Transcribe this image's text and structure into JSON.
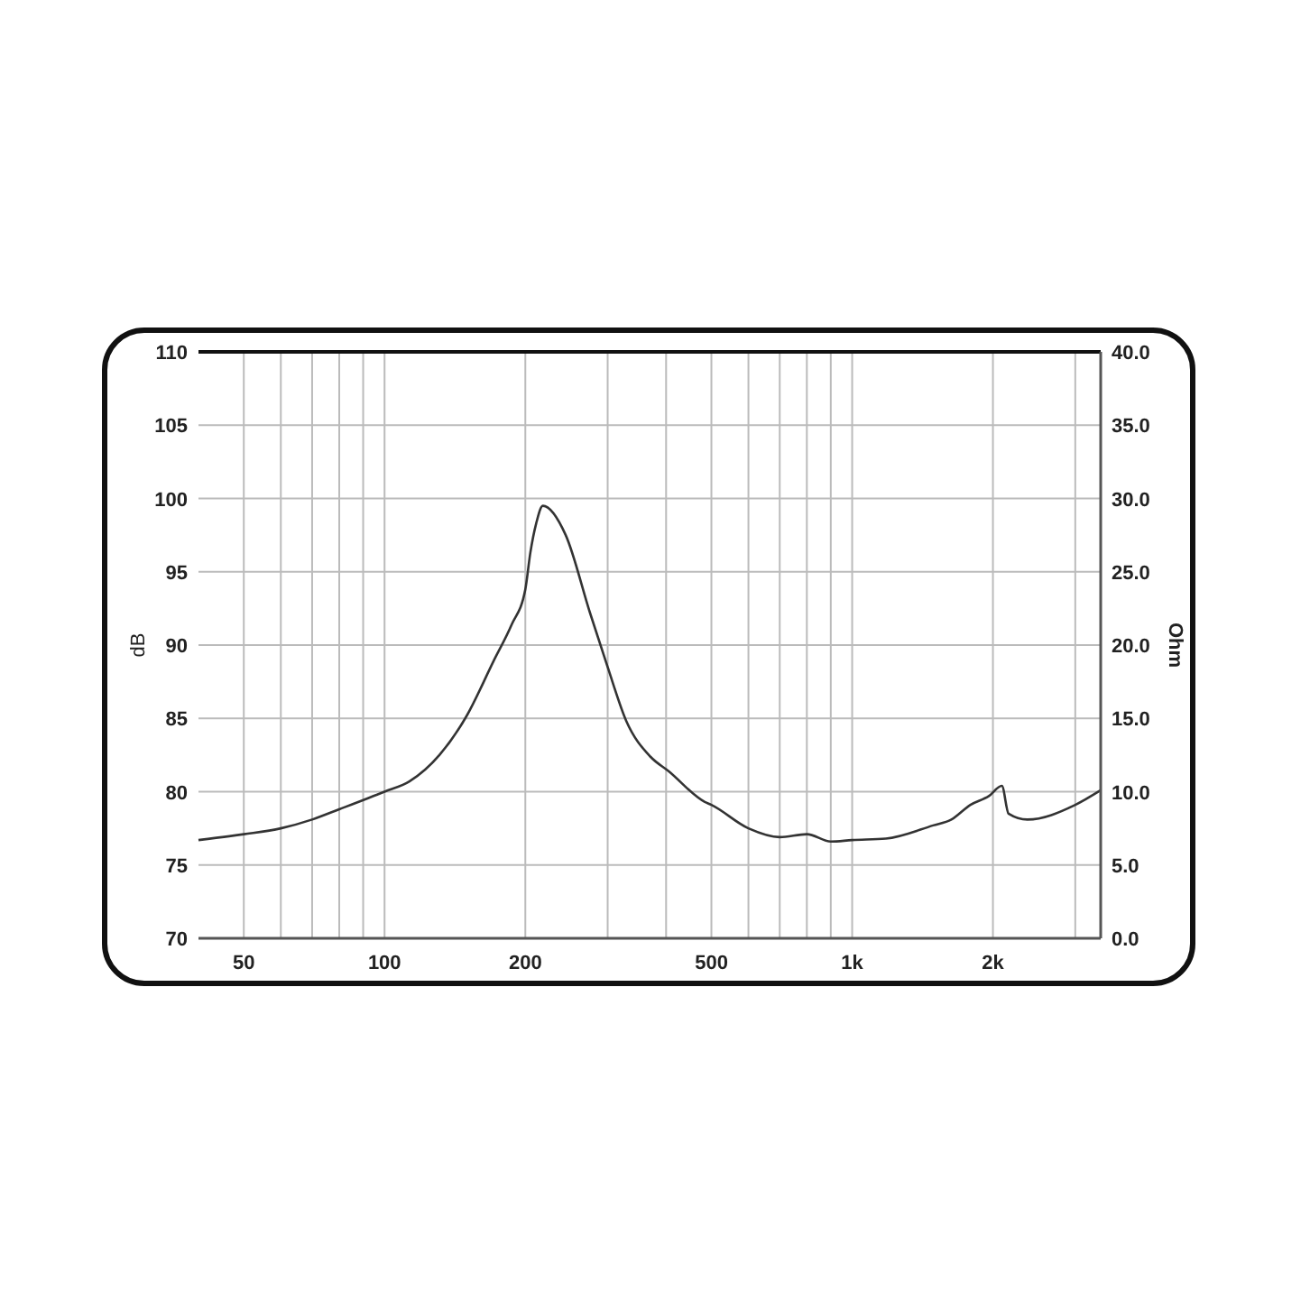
{
  "chart_data": {
    "type": "line",
    "ylabel": "dB",
    "y2label": "Ohm",
    "x": [
      40,
      50,
      60,
      70,
      80,
      100,
      113,
      131,
      150,
      171,
      187,
      200,
      205,
      211,
      218,
      244,
      275,
      300,
      329,
      370,
      405,
      484,
      500,
      600,
      700,
      800,
      900,
      1000,
      1180,
      1490,
      1630,
      1790,
      1960,
      2090,
      2160,
      2370,
      3000,
      3400
    ],
    "series": [
      {
        "color": "#333333",
        "axis": "y2",
        "values": [
          6.7,
          7.1,
          7.5,
          8.1,
          8.8,
          10.0,
          10.7,
          12.5,
          15.2,
          18.9,
          21.4,
          23.8,
          26.3,
          28.3,
          29.5,
          27.5,
          22.2,
          18.5,
          14.8,
          12.4,
          11.4,
          9.3,
          9.1,
          7.5,
          6.9,
          7.1,
          6.6,
          6.7,
          6.8,
          7.7,
          8.1,
          9.1,
          9.7,
          10.4,
          8.5,
          8.1,
          9.1,
          10.1
        ]
      }
    ],
    "log": "x",
    "xlim": [
      40,
      3400
    ],
    "xticks": [
      {
        "value": 50,
        "label": "50"
      },
      {
        "value": 60,
        "label": null
      },
      {
        "value": 70,
        "label": null
      },
      {
        "value": 80,
        "label": null
      },
      {
        "value": 90,
        "label": null
      },
      100,
      {
        "value": 200,
        "label": "200"
      },
      {
        "value": 300,
        "label": null
      },
      {
        "value": 400,
        "label": null
      },
      500,
      {
        "value": 600,
        "label": null
      },
      {
        "value": 700,
        "label": null
      },
      {
        "value": 800,
        "label": null
      },
      {
        "value": 900,
        "label": null
      },
      {
        "value": 1000,
        "label": "1k"
      },
      {
        "value": 2000,
        "label": "2k"
      },
      {
        "value": 3000,
        "label": null
      }
    ],
    "ylim": [
      70,
      110
    ],
    "yticks": [
      70,
      75,
      80,
      85,
      90,
      95,
      100,
      105,
      110
    ],
    "y2lim": [
      0,
      40
    ],
    "y2ticks": [
      {
        "value": 0,
        "label": "0.0"
      },
      {
        "value": 5,
        "label": "5.0"
      },
      {
        "value": 10,
        "label": "10.0"
      },
      {
        "value": 15,
        "label": "15.0"
      },
      {
        "value": 20,
        "label": "20.0"
      },
      {
        "value": 25,
        "label": "25.0"
      },
      {
        "value": 30,
        "label": "30.0"
      },
      {
        "value": 35,
        "label": "35.0"
      },
      {
        "value": 40,
        "label": "40.0"
      }
    ],
    "grid": true,
    "marker": "none",
    "line_style": "solid"
  }
}
